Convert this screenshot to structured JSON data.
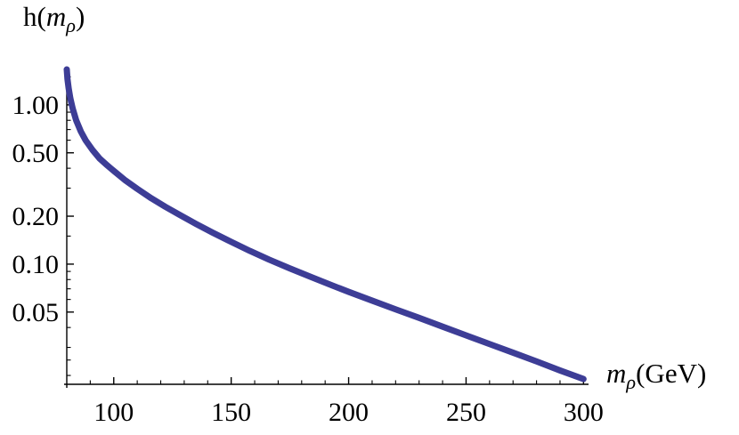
{
  "title": {
    "prefix": "h(",
    "var": "m",
    "sub": "ρ",
    "suffix": ")"
  },
  "x_axis_label": {
    "var": "m",
    "sub": "ρ",
    "suffix": "(GeV)"
  },
  "chart_data": {
    "type": "line",
    "title": "",
    "xlabel": "m_rho (GeV)",
    "ylabel": "h(m_rho)",
    "y_scale": "log",
    "grid": false,
    "legend": "none",
    "axis": {
      "xmin": 80,
      "xmax": 301,
      "ymin": 0.0176,
      "ymax": 1.67
    },
    "x_ticks": {
      "major": [
        {
          "value": 100,
          "label": "100"
        },
        {
          "value": 150,
          "label": "150"
        },
        {
          "value": 200,
          "label": "200"
        },
        {
          "value": 250,
          "label": "250"
        },
        {
          "value": 300,
          "label": "300"
        }
      ],
      "minor": [
        90,
        110,
        120,
        130,
        140,
        160,
        170,
        180,
        190,
        210,
        220,
        230,
        240,
        260,
        270,
        280,
        290
      ]
    },
    "y_ticks": {
      "major": [
        {
          "value": 1.0,
          "label": "1.00"
        },
        {
          "value": 0.5,
          "label": "0.50"
        },
        {
          "value": 0.2,
          "label": "0.20"
        },
        {
          "value": 0.1,
          "label": "0.10"
        },
        {
          "value": 0.05,
          "label": "0.05"
        }
      ],
      "minor": [
        1.5,
        0.9,
        0.8,
        0.7,
        0.6,
        0.4,
        0.3,
        0.15,
        0.09,
        0.08,
        0.07,
        0.06,
        0.04,
        0.03,
        0.025,
        0.02
      ]
    },
    "series": [
      {
        "name": "h(m_rho)",
        "color": "#3d3d96",
        "width": 7,
        "points": [
          [
            80,
            1.67
          ],
          [
            80.3,
            1.45
          ],
          [
            80.8,
            1.27
          ],
          [
            81.5,
            1.1
          ],
          [
            82.5,
            0.95
          ],
          [
            84,
            0.8
          ],
          [
            86,
            0.68
          ],
          [
            88,
            0.6
          ],
          [
            91,
            0.52
          ],
          [
            94,
            0.46
          ],
          [
            97,
            0.42
          ],
          [
            100,
            0.385
          ],
          [
            105,
            0.335
          ],
          [
            110,
            0.297
          ],
          [
            116,
            0.259
          ],
          [
            122,
            0.229
          ],
          [
            128,
            0.204
          ],
          [
            135,
            0.179
          ],
          [
            142,
            0.158
          ],
          [
            150,
            0.138
          ],
          [
            158,
            0.121
          ],
          [
            166,
            0.107
          ],
          [
            175,
            0.094
          ],
          [
            184,
            0.083
          ],
          [
            193,
            0.0735
          ],
          [
            200,
            0.067
          ],
          [
            210,
            0.059
          ],
          [
            220,
            0.052
          ],
          [
            230,
            0.046
          ],
          [
            240,
            0.0405
          ],
          [
            250,
            0.0357
          ],
          [
            260,
            0.0315
          ],
          [
            270,
            0.0278
          ],
          [
            280,
            0.0245
          ],
          [
            290,
            0.0215
          ],
          [
            300,
            0.019
          ]
        ]
      }
    ],
    "axis_color": "#000000",
    "tick_label_font_size": 30
  }
}
